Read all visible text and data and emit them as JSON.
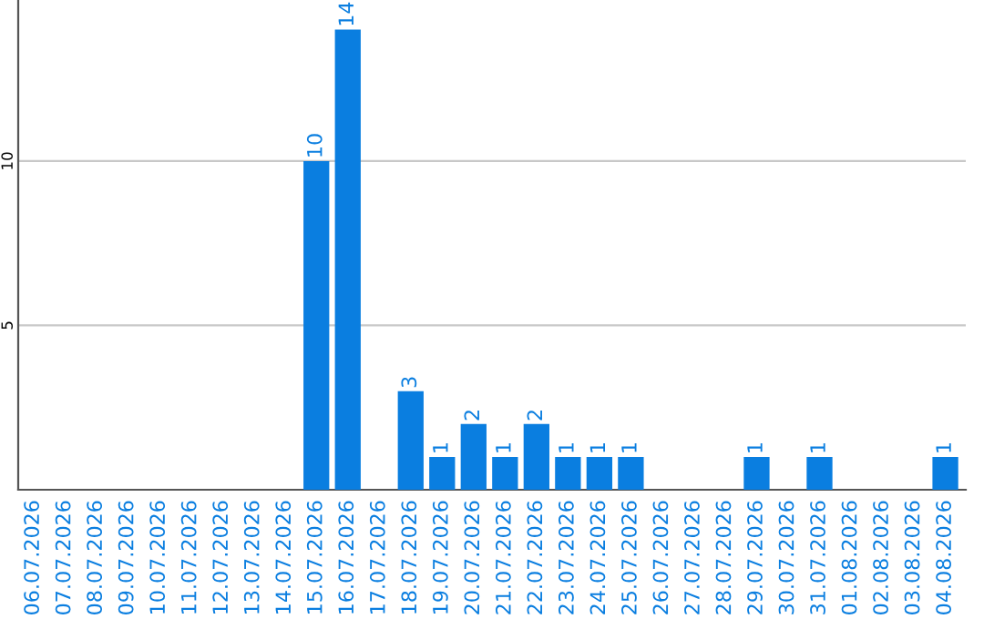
{
  "chart_data": {
    "type": "bar",
    "categories": [
      "06.07.2026",
      "07.07.2026",
      "08.07.2026",
      "09.07.2026",
      "10.07.2026",
      "11.07.2026",
      "12.07.2026",
      "13.07.2026",
      "14.07.2026",
      "15.07.2026",
      "16.07.2026",
      "17.07.2026",
      "18.07.2026",
      "19.07.2026",
      "20.07.2026",
      "21.07.2026",
      "22.07.2026",
      "23.07.2026",
      "24.07.2026",
      "25.07.2026",
      "26.07.2026",
      "27.07.2026",
      "28.07.2026",
      "29.07.2026",
      "30.07.2026",
      "31.07.2026",
      "01.08.2026",
      "02.08.2026",
      "03.08.2026",
      "04.08.2026"
    ],
    "values": [
      0,
      0,
      0,
      0,
      0,
      0,
      0,
      0,
      0,
      10,
      14,
      0,
      3,
      1,
      2,
      1,
      2,
      1,
      1,
      1,
      0,
      0,
      0,
      1,
      0,
      1,
      0,
      0,
      0,
      1
    ],
    "value_labels": [
      null,
      null,
      null,
      null,
      null,
      null,
      null,
      null,
      null,
      "10",
      "14",
      null,
      "3",
      "1",
      "2",
      "1",
      "2",
      "1",
      "1",
      "1",
      null,
      null,
      null,
      "1",
      null,
      "1",
      null,
      null,
      null,
      "1"
    ],
    "color": "#0a7ee0",
    "ylim": [
      0,
      14.9
    ],
    "yticks": [
      5,
      10
    ],
    "grid": "y"
  }
}
